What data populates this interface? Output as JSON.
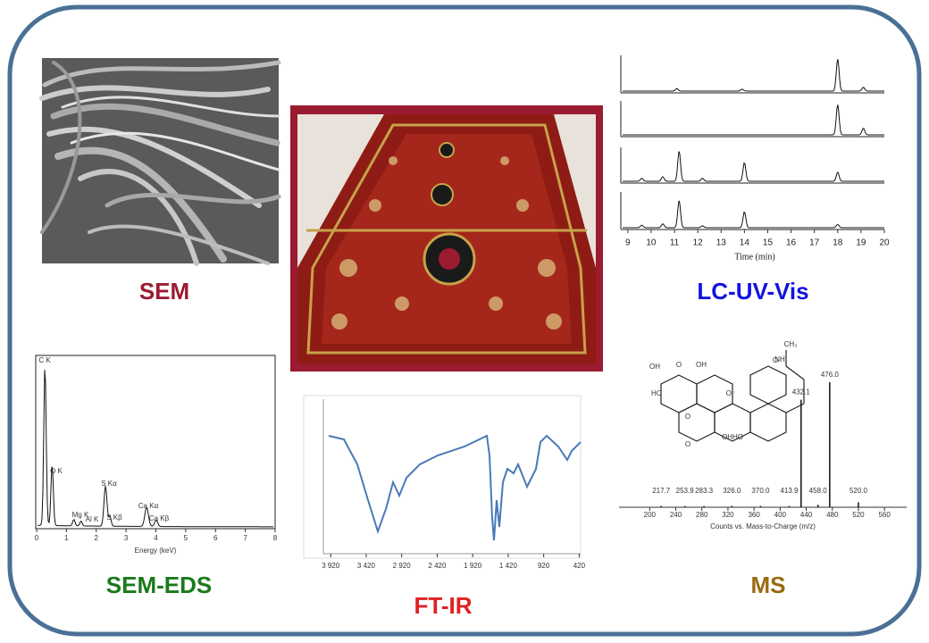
{
  "panels": {
    "sem": {
      "title": "SEM"
    },
    "lc": {
      "title": "LC-UV-Vis",
      "x_label": "Time  (min)",
      "xlim": [
        8.7,
        20
      ],
      "xticks": [
        9,
        10,
        11,
        12,
        13,
        14,
        15,
        16,
        17,
        18,
        19,
        20
      ]
    },
    "eds": {
      "title": "SEM-EDS",
      "x_label": "Energy (keV)",
      "xlim": [
        0,
        8
      ],
      "xticks": [
        0,
        1,
        2,
        3,
        4,
        5,
        6,
        7,
        8
      ],
      "peak_labels": [
        "C K",
        "O K",
        "Mg K",
        "Al K",
        "S Kα",
        "S Kβ",
        "Ca Kα",
        "Ca Kβ"
      ]
    },
    "ftir": {
      "title": "FT-IR",
      "xlim": [
        4300,
        400
      ],
      "xticks": [
        {
          "value": 3920,
          "label": "3 920"
        },
        {
          "value": 3420,
          "label": "3 420"
        },
        {
          "value": 2920,
          "label": "2 920"
        },
        {
          "value": 2420,
          "label": "2 420"
        },
        {
          "value": 1920,
          "label": "1 920"
        },
        {
          "value": 1420,
          "label": "1 420"
        },
        920,
        420
      ]
    },
    "ms": {
      "title": "MS",
      "x_label": "Counts vs. Mass-to-Charge (m/z)",
      "xlim": [
        153,
        594
      ],
      "xticks": [
        200,
        240,
        280,
        320,
        360,
        400,
        440,
        480,
        520,
        560
      ],
      "peaks": [
        {
          "value": 217.7,
          "label": "217.7"
        },
        {
          "value": 253.9,
          "label": "253.9"
        },
        {
          "value": 283.3,
          "label": "283.3"
        },
        {
          "value": 326.0,
          "label": "326.0"
        },
        {
          "value": 370.0,
          "label": "370.0"
        },
        {
          "value": 413.9,
          "label": "413.9"
        },
        {
          "value": 432.1,
          "label": "432.1"
        },
        {
          "value": 458.0,
          "label": "458.0"
        },
        {
          "value": 476.0,
          "label": "476.0"
        },
        {
          "value": 520.0,
          "label": "520.0"
        }
      ],
      "intensity": [
        1,
        1,
        1,
        1,
        1,
        1,
        86,
        2,
        100,
        4
      ],
      "structure_labels": [
        "OH",
        "O",
        "OH",
        "HO",
        "O",
        "O",
        "O⁻",
        "OHHO",
        "NH",
        "O",
        "CH₃"
      ]
    }
  }
}
